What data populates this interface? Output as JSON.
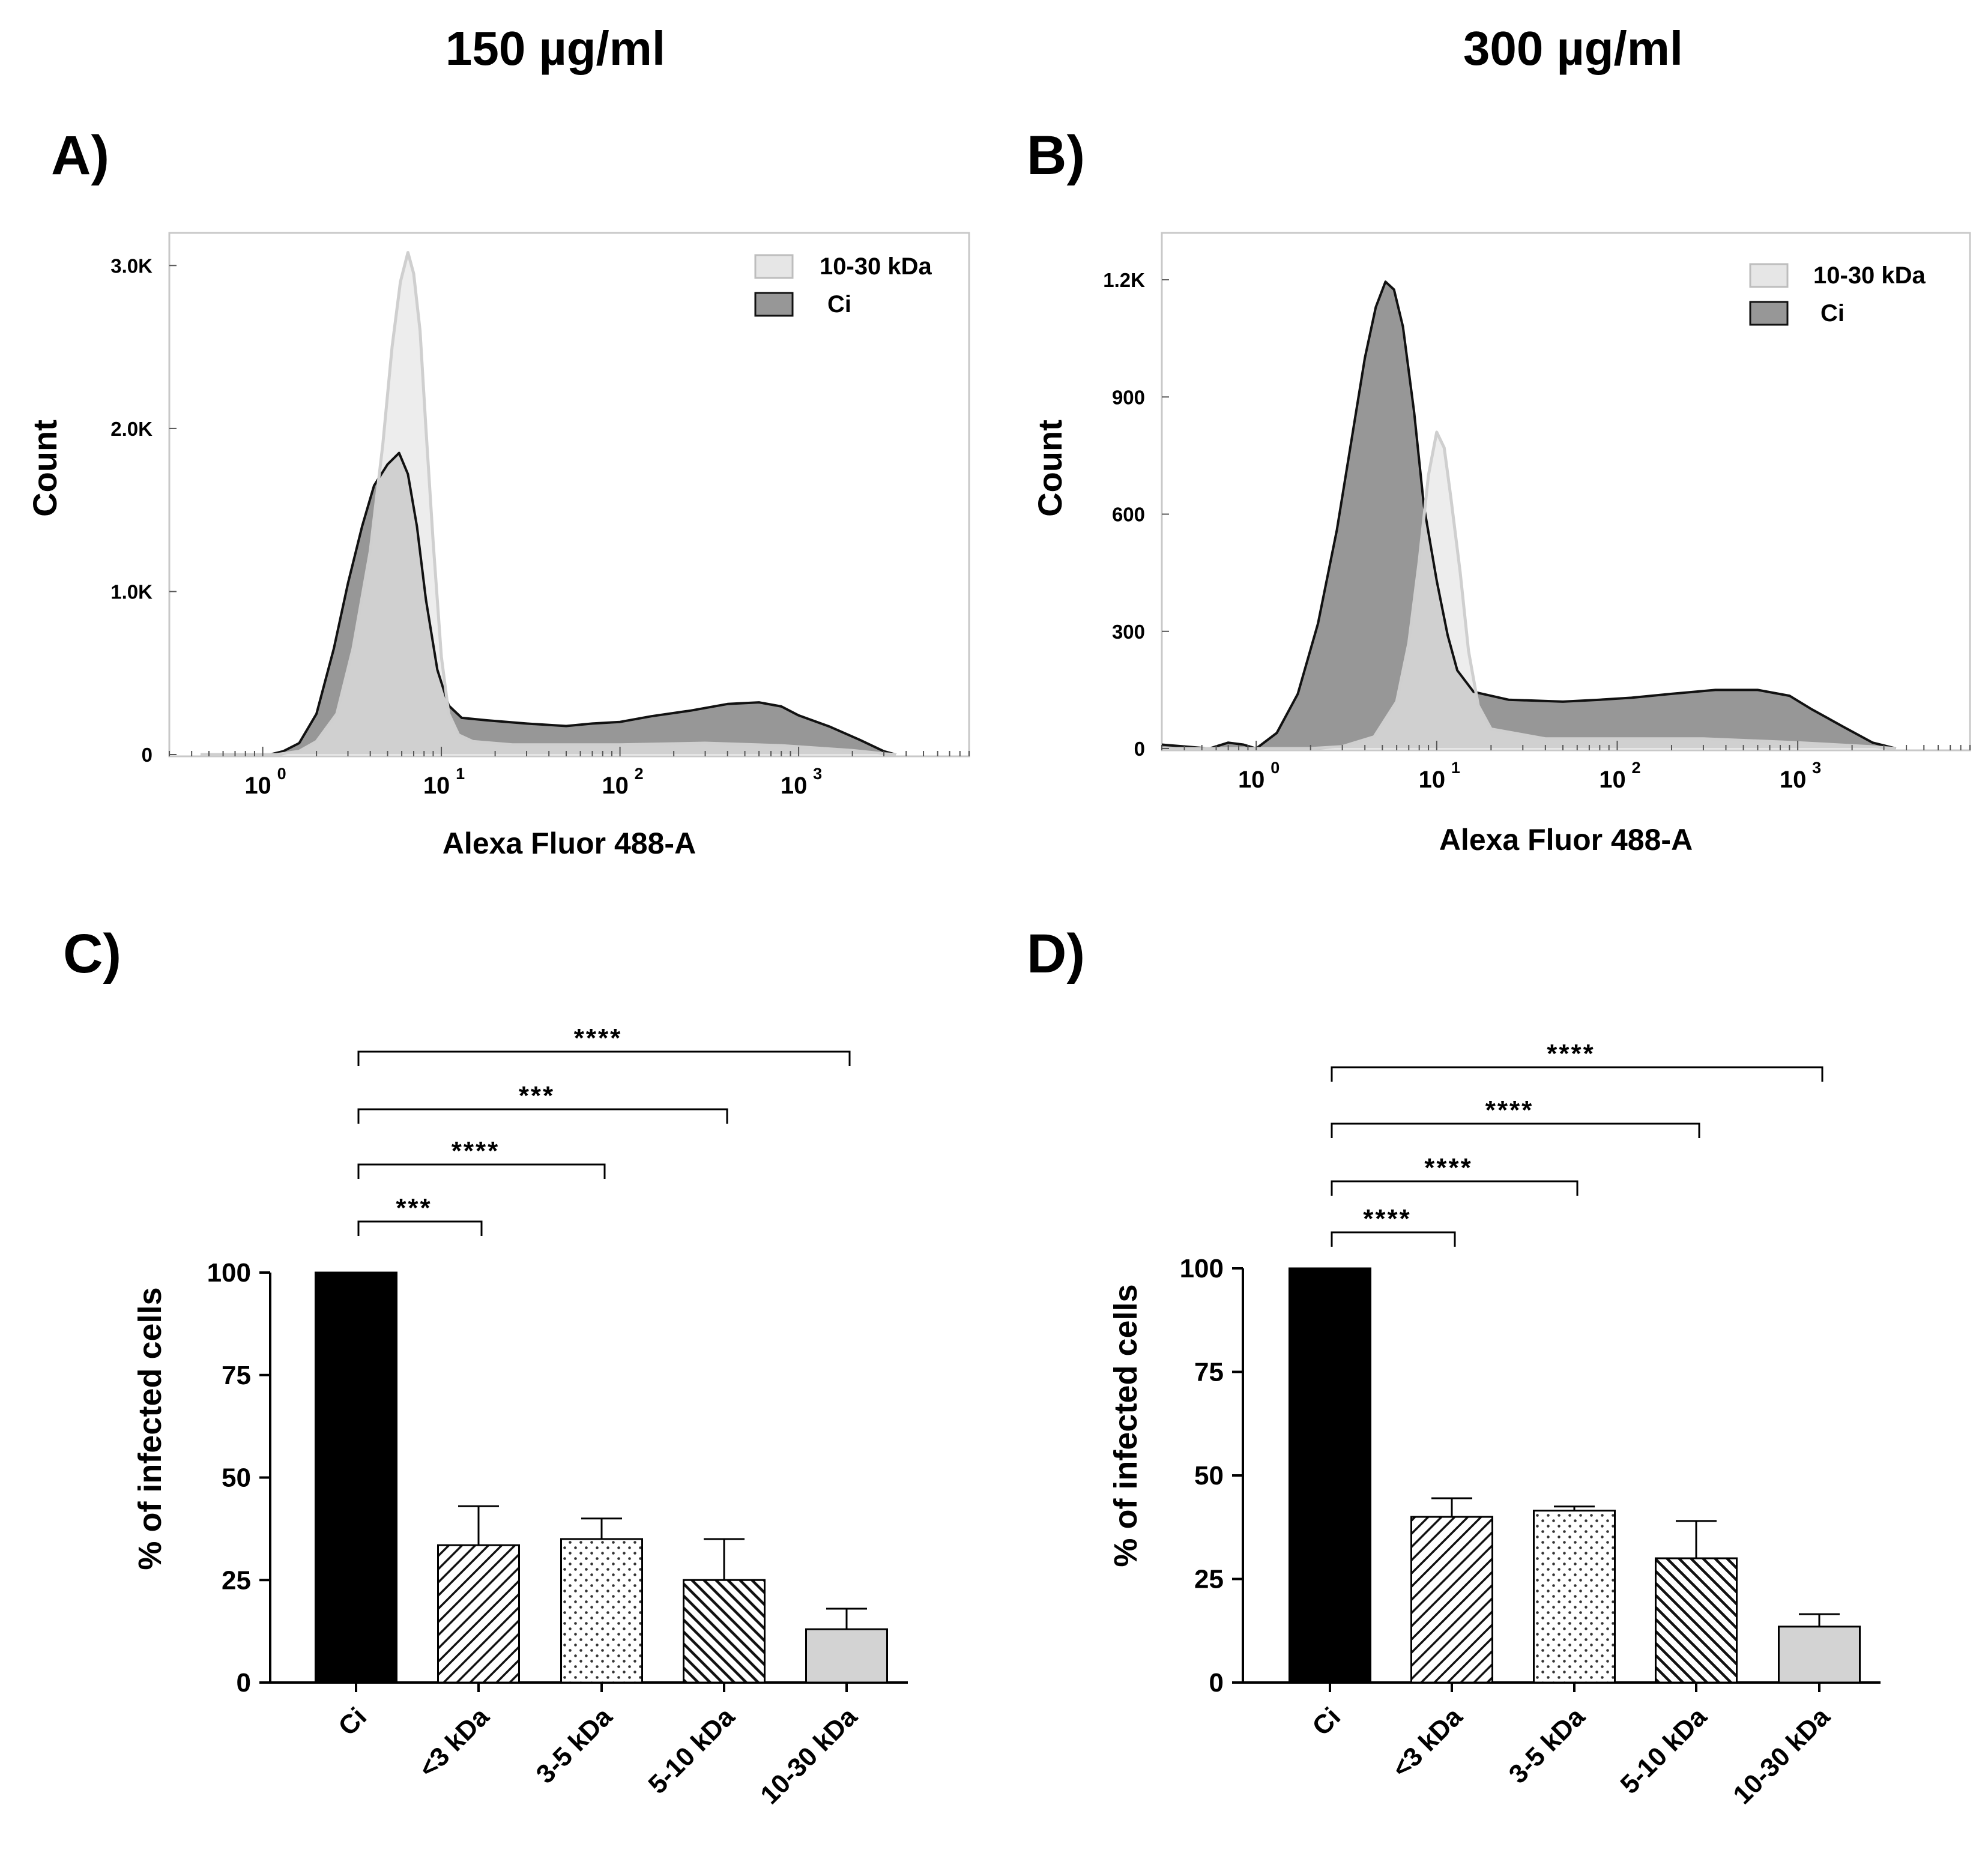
{
  "column_titles": [
    "150 µg/ml",
    "300 µg/ml"
  ],
  "chart_data": [
    {
      "id": "A",
      "panel_label": "A)",
      "type": "area",
      "subtype": "flow-cytometry-histogram",
      "xlabel": "Alexa Fluor 488-A",
      "ylabel": "Count",
      "xscale": "log",
      "xlim": [
        0.3,
        9000
      ],
      "ylim": [
        0,
        3200
      ],
      "x_tick_labels": [
        "10",
        "10",
        "10",
        "10"
      ],
      "x_tick_exponents": [
        "0",
        "1",
        "2",
        "3"
      ],
      "x_tick_values": [
        1,
        10,
        100,
        1000
      ],
      "y_tick_labels": [
        "0",
        "1.0K",
        "2.0K",
        "3.0K"
      ],
      "y_tick_values": [
        0,
        1000,
        2000,
        3000
      ],
      "legend_position": "top-right",
      "legend": [
        "10-30 kDa",
        "Ci"
      ],
      "series": [
        {
          "name": "10-30 kDa",
          "color": "#e6e6e6",
          "stroke": "#cfcfcf",
          "points": [
            [
              0.45,
              0
            ],
            [
              1.2,
              0
            ],
            [
              1.6,
              20
            ],
            [
              2,
              80
            ],
            [
              2.6,
              250
            ],
            [
              3.2,
              650
            ],
            [
              4,
              1250
            ],
            [
              4.7,
              1900
            ],
            [
              5.3,
              2500
            ],
            [
              5.9,
              2900
            ],
            [
              6.5,
              3080
            ],
            [
              7,
              2950
            ],
            [
              7.6,
              2600
            ],
            [
              8.2,
              2000
            ],
            [
              9,
              1300
            ],
            [
              10,
              600
            ],
            [
              11,
              250
            ],
            [
              12.5,
              120
            ],
            [
              15,
              80
            ],
            [
              25,
              60
            ],
            [
              100,
              60
            ],
            [
              300,
              70
            ],
            [
              800,
              55
            ],
            [
              2000,
              25
            ],
            [
              3000,
              5
            ],
            [
              3500,
              0
            ]
          ]
        },
        {
          "name": "Ci",
          "color": "#979797",
          "stroke": "#111111",
          "points": [
            [
              0.45,
              0
            ],
            [
              1.1,
              0
            ],
            [
              1.3,
              20
            ],
            [
              1.6,
              70
            ],
            [
              2,
              250
            ],
            [
              2.5,
              650
            ],
            [
              3,
              1050
            ],
            [
              3.6,
              1400
            ],
            [
              4.2,
              1650
            ],
            [
              5,
              1780
            ],
            [
              5.8,
              1850
            ],
            [
              6.5,
              1720
            ],
            [
              7.3,
              1400
            ],
            [
              8.2,
              950
            ],
            [
              9.5,
              520
            ],
            [
              11,
              300
            ],
            [
              13,
              225
            ],
            [
              18,
              210
            ],
            [
              30,
              190
            ],
            [
              50,
              175
            ],
            [
              70,
              190
            ],
            [
              100,
              200
            ],
            [
              150,
              235
            ],
            [
              250,
              270
            ],
            [
              400,
              310
            ],
            [
              600,
              320
            ],
            [
              800,
              295
            ],
            [
              1000,
              240
            ],
            [
              1500,
              170
            ],
            [
              2200,
              90
            ],
            [
              3000,
              20
            ],
            [
              3500,
              0
            ]
          ]
        }
      ]
    },
    {
      "id": "B",
      "panel_label": "B)",
      "type": "area",
      "subtype": "flow-cytometry-histogram",
      "xlabel": "Alexa Fluor 488-A",
      "ylabel": "Count",
      "xscale": "log",
      "xlim": [
        0.3,
        9000
      ],
      "ylim": [
        0,
        1320
      ],
      "x_tick_labels": [
        "10",
        "10",
        "10",
        "10"
      ],
      "x_tick_exponents": [
        "0",
        "1",
        "2",
        "3"
      ],
      "x_tick_values": [
        1,
        10,
        100,
        1000
      ],
      "y_tick_labels": [
        "0",
        "300",
        "600",
        "900",
        "1.2K"
      ],
      "y_tick_values": [
        0,
        300,
        600,
        900,
        1200
      ],
      "legend_position": "top-right",
      "legend": [
        "10-30 kDa",
        "Ci"
      ],
      "series": [
        {
          "name": "10-30 kDa",
          "color": "#e6e6e6",
          "stroke": "#cfcfcf",
          "points": [
            [
              0.3,
              0
            ],
            [
              2,
              0
            ],
            [
              3,
              5
            ],
            [
              4.5,
              30
            ],
            [
              6,
              120
            ],
            [
              7,
              270
            ],
            [
              8,
              480
            ],
            [
              9,
              700
            ],
            [
              10,
              810
            ],
            [
              11,
              770
            ],
            [
              12,
              640
            ],
            [
              13.5,
              450
            ],
            [
              15,
              250
            ],
            [
              17,
              110
            ],
            [
              20,
              50
            ],
            [
              40,
              25
            ],
            [
              100,
              25
            ],
            [
              300,
              25
            ],
            [
              1000,
              15
            ],
            [
              2500,
              5
            ],
            [
              3500,
              0
            ]
          ]
        },
        {
          "name": "Ci",
          "color": "#979797",
          "stroke": "#111111",
          "points": [
            [
              0.3,
              10
            ],
            [
              0.55,
              0
            ],
            [
              0.7,
              15
            ],
            [
              0.85,
              10
            ],
            [
              1,
              0
            ],
            [
              1.3,
              40
            ],
            [
              1.7,
              140
            ],
            [
              2.2,
              320
            ],
            [
              2.8,
              560
            ],
            [
              3.4,
              800
            ],
            [
              4,
              1000
            ],
            [
              4.6,
              1130
            ],
            [
              5.2,
              1195
            ],
            [
              5.8,
              1175
            ],
            [
              6.5,
              1080
            ],
            [
              7.5,
              860
            ],
            [
              8.5,
              620
            ],
            [
              10,
              430
            ],
            [
              11.5,
              290
            ],
            [
              13,
              200
            ],
            [
              16,
              145
            ],
            [
              25,
              125
            ],
            [
              50,
              120
            ],
            [
              80,
              125
            ],
            [
              120,
              130
            ],
            [
              200,
              140
            ],
            [
              350,
              150
            ],
            [
              600,
              150
            ],
            [
              900,
              135
            ],
            [
              1200,
              100
            ],
            [
              1800,
              55
            ],
            [
              2600,
              15
            ],
            [
              3500,
              0
            ]
          ]
        }
      ]
    },
    {
      "id": "C",
      "panel_label": "C)",
      "type": "bar",
      "ylabel": "% of infected cells",
      "ylim": [
        0,
        100
      ],
      "y_tick_labels": [
        "0",
        "25",
        "50",
        "75",
        "100"
      ],
      "y_tick_values": [
        0,
        25,
        50,
        75,
        100
      ],
      "categories": [
        "Ci",
        "<3 kDa",
        "3-5 kDa",
        "5-10 kDa",
        "10-30 kDa"
      ],
      "values": [
        100,
        33.5,
        35,
        25,
        13
      ],
      "errors": [
        0,
        9.5,
        5,
        10,
        5
      ],
      "fills": [
        "solid-black",
        "diag-right",
        "dots",
        "diag-left",
        "solid-light"
      ],
      "significance": [
        {
          "from": 0,
          "to": 1,
          "label": "***"
        },
        {
          "from": 0,
          "to": 2,
          "label": "****"
        },
        {
          "from": 0,
          "to": 3,
          "label": "***"
        },
        {
          "from": 0,
          "to": 4,
          "label": "****"
        }
      ]
    },
    {
      "id": "D",
      "panel_label": "D)",
      "type": "bar",
      "ylabel": "% of infected cells",
      "ylim": [
        0,
        100
      ],
      "y_tick_labels": [
        "0",
        "25",
        "50",
        "75",
        "100"
      ],
      "y_tick_values": [
        0,
        25,
        50,
        75,
        100
      ],
      "categories": [
        "Ci",
        "<3 kDa",
        "3-5 kDa",
        "5-10 kDa",
        "10-30 kDa"
      ],
      "values": [
        100,
        40,
        41.5,
        30,
        13.5
      ],
      "errors": [
        0,
        4.5,
        1,
        9,
        3
      ],
      "fills": [
        "solid-black",
        "diag-right",
        "dots",
        "diag-left",
        "solid-light"
      ],
      "significance": [
        {
          "from": 0,
          "to": 1,
          "label": "****"
        },
        {
          "from": 0,
          "to": 2,
          "label": "****"
        },
        {
          "from": 0,
          "to": 3,
          "label": "****"
        },
        {
          "from": 0,
          "to": 4,
          "label": "****"
        }
      ]
    }
  ]
}
